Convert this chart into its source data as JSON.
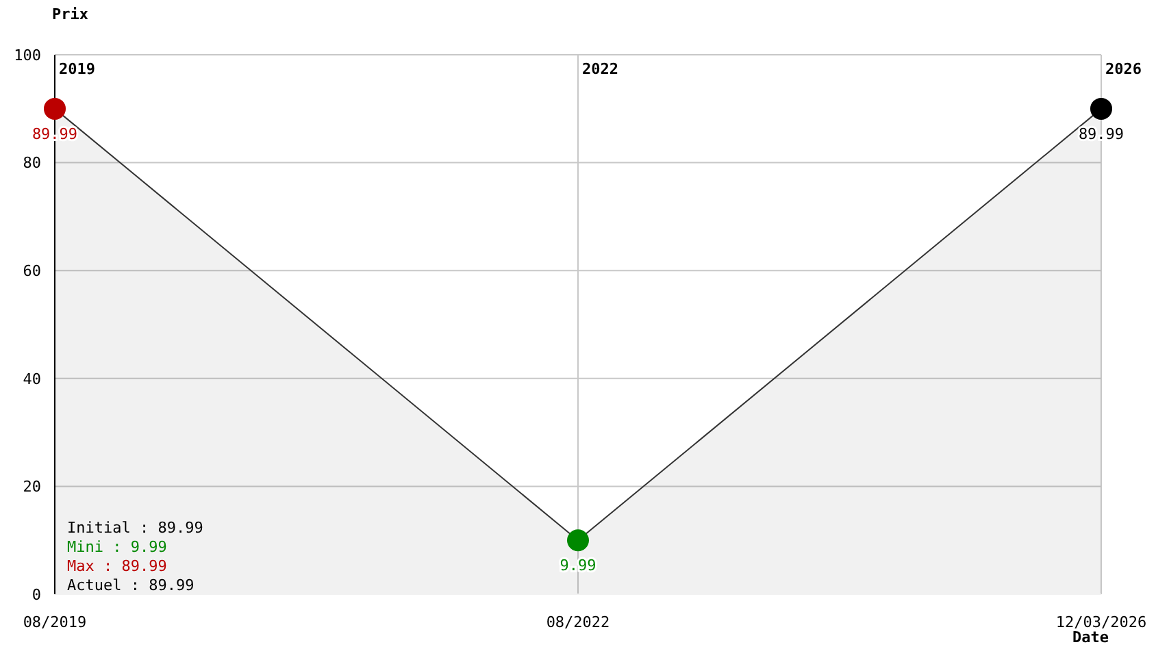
{
  "chart_data": {
    "type": "area",
    "ylabel": "Prix",
    "xlabel": "Date",
    "categories": [
      "08/2019",
      "08/2022",
      "12/03/2026"
    ],
    "series": [
      {
        "color": "#333333",
        "colors": [
          "#bb0000",
          "#008800",
          "#000000"
        ],
        "values": [
          89.99,
          9.99,
          89.99
        ]
      }
    ],
    "ylim": [
      0,
      100
    ],
    "yticks": [
      0,
      20,
      40,
      60,
      80,
      100
    ],
    "grid": true,
    "marker": "circle",
    "data_labels": true,
    "annotations": [
      "2019",
      "2022",
      "2026",
      "Initial : 89.99",
      "Mini : 9.99",
      "Max : 89.99",
      "Actuel : 89.99"
    ]
  }
}
